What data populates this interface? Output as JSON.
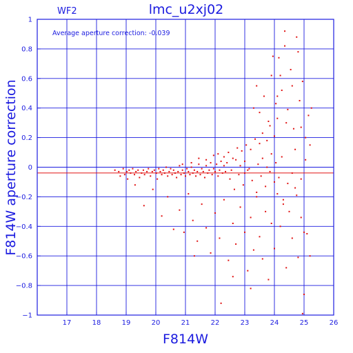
{
  "chart_data": {
    "type": "scatter",
    "title": "lmc_u2xj02",
    "chip_label": "WF2",
    "annotation": "Average aperture correction:  -0.039",
    "xlabel": "F814W",
    "ylabel": "F814W aperture correction",
    "xlim": [
      16,
      26
    ],
    "ylim": [
      -1,
      1
    ],
    "x_ticks": [
      17,
      18,
      19,
      20,
      21,
      22,
      23,
      24,
      25,
      26
    ],
    "y_ticks": [
      -1,
      -0.8,
      -0.6,
      -0.4,
      -0.2,
      0,
      0.2,
      0.4,
      0.6,
      0.8,
      1
    ],
    "x_tick_labels": [
      "17",
      "18",
      "19",
      "20",
      "21",
      "22",
      "23",
      "24",
      "25",
      "26"
    ],
    "y_tick_labels": [
      "−1",
      "−0.8",
      "−0.6",
      "−0.4",
      "−0.2",
      "0",
      "0.2",
      "0.4",
      "0.6",
      "0.8",
      "1"
    ],
    "grid": true,
    "reference_line": {
      "y": -0.039,
      "color": "#e01010"
    },
    "point_color": "#e01010",
    "axis_color": "#1a1adf",
    "series": [
      {
        "points": [
          [
            18.62,
            -0.02
          ],
          [
            18.75,
            -0.03
          ],
          [
            18.8,
            -0.06
          ],
          [
            18.9,
            -0.01
          ],
          [
            18.95,
            -0.05
          ],
          [
            19.02,
            -0.03
          ],
          [
            19.05,
            -0.08
          ],
          [
            19.1,
            -0.02
          ],
          [
            19.15,
            -0.04
          ],
          [
            19.22,
            -0.01
          ],
          [
            19.28,
            -0.05
          ],
          [
            19.33,
            -0.03
          ],
          [
            19.4,
            -0.02
          ],
          [
            19.45,
            -0.07
          ],
          [
            19.52,
            -0.04
          ],
          [
            19.58,
            -0.02
          ],
          [
            19.62,
            -0.05
          ],
          [
            19.7,
            -0.03
          ],
          [
            19.75,
            -0.01
          ],
          [
            19.82,
            -0.06
          ],
          [
            19.88,
            -0.03
          ],
          [
            19.95,
            -0.02
          ],
          [
            20.02,
            -0.04
          ],
          [
            20.05,
            -0.08
          ],
          [
            20.1,
            -0.01
          ],
          [
            20.15,
            -0.03
          ],
          [
            20.2,
            -0.05
          ],
          [
            20.25,
            -0.02
          ],
          [
            20.3,
            -0.04
          ],
          [
            20.35,
            0.0
          ],
          [
            20.4,
            -0.06
          ],
          [
            20.45,
            -0.03
          ],
          [
            20.5,
            -0.01
          ],
          [
            20.55,
            -0.05
          ],
          [
            20.6,
            -0.02
          ],
          [
            20.65,
            -0.04
          ],
          [
            20.7,
            -0.07
          ],
          [
            20.75,
            -0.03
          ],
          [
            20.8,
            0.01
          ],
          [
            20.85,
            -0.05
          ],
          [
            20.9,
            -0.02
          ],
          [
            20.95,
            -0.04
          ],
          [
            21.0,
            -0.06
          ],
          [
            21.05,
            -0.01
          ],
          [
            21.1,
            -0.03
          ],
          [
            21.15,
            -0.05
          ],
          [
            21.2,
            0.0
          ],
          [
            21.25,
            -0.04
          ],
          [
            21.3,
            -0.02
          ],
          [
            21.35,
            -0.06
          ],
          [
            21.4,
            -0.03
          ],
          [
            21.45,
            0.02
          ],
          [
            21.5,
            -0.05
          ],
          [
            21.55,
            -0.01
          ],
          [
            21.6,
            -0.03
          ],
          [
            21.65,
            -0.07
          ],
          [
            21.7,
            0.01
          ],
          [
            21.75,
            -0.04
          ],
          [
            21.8,
            -0.02
          ],
          [
            21.85,
            0.03
          ],
          [
            21.9,
            -0.05
          ],
          [
            21.95,
            -0.01
          ],
          [
            22.0,
            -0.03
          ],
          [
            22.05,
            0.02
          ],
          [
            22.1,
            -0.06
          ],
          [
            22.15,
            -0.02
          ],
          [
            22.2,
            0.04
          ],
          [
            22.25,
            -0.04
          ],
          [
            22.3,
            0.01
          ],
          [
            22.35,
            -0.03
          ],
          [
            19.3,
            -0.12
          ],
          [
            19.6,
            -0.26
          ],
          [
            19.9,
            -0.15
          ],
          [
            20.2,
            -0.33
          ],
          [
            20.4,
            -0.2
          ],
          [
            20.6,
            -0.42
          ],
          [
            20.8,
            -0.29
          ],
          [
            20.95,
            -0.44
          ],
          [
            21.1,
            -0.18
          ],
          [
            21.25,
            -0.36
          ],
          [
            21.4,
            -0.5
          ],
          [
            21.55,
            -0.25
          ],
          [
            21.7,
            -0.41
          ],
          [
            21.85,
            -0.58
          ],
          [
            22.0,
            -0.31
          ],
          [
            22.15,
            -0.48
          ],
          [
            22.3,
            -0.22
          ],
          [
            22.45,
            -0.63
          ],
          [
            22.6,
            -0.38
          ],
          [
            22.7,
            -0.52
          ],
          [
            22.85,
            -0.27
          ],
          [
            23.0,
            -0.44
          ],
          [
            23.1,
            -0.7
          ],
          [
            23.2,
            -0.34
          ],
          [
            23.3,
            -0.56
          ],
          [
            23.4,
            -0.2
          ],
          [
            23.5,
            -0.47
          ],
          [
            23.6,
            -0.62
          ],
          [
            23.7,
            -0.3
          ],
          [
            23.8,
            -0.76
          ],
          [
            21.3,
            -0.6
          ],
          [
            22.2,
            -0.92
          ],
          [
            22.6,
            -0.74
          ],
          [
            23.2,
            -0.82
          ],
          [
            24.0,
            -0.55
          ],
          [
            24.2,
            -0.4
          ],
          [
            24.4,
            -0.68
          ],
          [
            24.6,
            -0.48
          ],
          [
            24.8,
            -0.61
          ],
          [
            25.0,
            -0.86
          ],
          [
            24.95,
            -0.99
          ],
          [
            25.2,
            -0.6
          ],
          [
            25.0,
            -0.44
          ],
          [
            24.5,
            -0.3
          ],
          [
            24.1,
            -0.18
          ],
          [
            24.3,
            -0.25
          ],
          [
            24.7,
            -0.14
          ],
          [
            24.9,
            -0.34
          ],
          [
            25.1,
            -0.45
          ],
          [
            23.9,
            -0.38
          ],
          [
            20.9,
            0.02
          ],
          [
            21.2,
            0.03
          ],
          [
            21.45,
            0.06
          ],
          [
            21.7,
            0.05
          ],
          [
            21.95,
            0.08
          ],
          [
            22.1,
            0.09
          ],
          [
            22.3,
            0.07
          ],
          [
            22.45,
            0.1
          ],
          [
            22.6,
            0.06
          ],
          [
            22.75,
            0.13
          ],
          [
            22.9,
            0.11
          ],
          [
            23.05,
            0.15
          ],
          [
            23.2,
            0.12
          ],
          [
            23.35,
            0.19
          ],
          [
            23.5,
            0.16
          ],
          [
            23.6,
            0.23
          ],
          [
            23.75,
            0.18
          ],
          [
            23.85,
            0.28
          ],
          [
            24.0,
            0.21
          ],
          [
            24.1,
            0.33
          ],
          [
            23.3,
            0.4
          ],
          [
            23.4,
            0.55
          ],
          [
            23.5,
            0.37
          ],
          [
            23.65,
            0.48
          ],
          [
            23.8,
            0.31
          ],
          [
            23.9,
            0.62
          ],
          [
            24.05,
            0.43
          ],
          [
            24.15,
            0.74
          ],
          [
            24.25,
            0.52
          ],
          [
            24.35,
            0.82
          ],
          [
            24.45,
            0.39
          ],
          [
            24.55,
            0.66
          ],
          [
            24.65,
            0.26
          ],
          [
            24.75,
            0.88
          ],
          [
            24.85,
            0.45
          ],
          [
            24.95,
            0.58
          ],
          [
            25.05,
            0.2
          ],
          [
            25.15,
            0.35
          ],
          [
            25.25,
            0.4
          ],
          [
            25.2,
            0.15
          ],
          [
            24.35,
            0.92
          ],
          [
            24.8,
            0.78
          ],
          [
            24.6,
            0.55
          ],
          [
            24.2,
            0.62
          ],
          [
            23.95,
            0.75
          ],
          [
            24.1,
            0.48
          ],
          [
            24.4,
            0.3
          ],
          [
            24.7,
            0.12
          ],
          [
            24.9,
            0.27
          ],
          [
            25.05,
            0.05
          ],
          [
            22.5,
            -0.08
          ],
          [
            22.65,
            -0.15
          ],
          [
            22.8,
            -0.05
          ],
          [
            22.95,
            -0.12
          ],
          [
            23.1,
            -0.02
          ],
          [
            23.25,
            -0.09
          ],
          [
            23.4,
            -0.17
          ],
          [
            23.55,
            -0.06
          ],
          [
            23.7,
            -0.13
          ],
          [
            23.85,
            -0.03
          ],
          [
            24.0,
            -0.1
          ],
          [
            24.15,
            -0.07
          ],
          [
            24.3,
            -0.22
          ],
          [
            24.45,
            -0.11
          ],
          [
            24.6,
            -0.04
          ],
          [
            24.75,
            -0.19
          ],
          [
            24.9,
            -0.08
          ],
          [
            23.0,
            0.04
          ],
          [
            23.15,
            -0.01
          ],
          [
            23.45,
            0.02
          ],
          [
            22.4,
            0.03
          ],
          [
            22.55,
            -0.02
          ],
          [
            22.7,
            0.05
          ],
          [
            22.85,
            0.01
          ],
          [
            23.0,
            -0.04
          ],
          [
            23.6,
            0.06
          ],
          [
            23.75,
            0.0
          ],
          [
            23.9,
            0.09
          ],
          [
            24.05,
            0.03
          ],
          [
            24.25,
            0.07
          ]
        ]
      }
    ]
  }
}
